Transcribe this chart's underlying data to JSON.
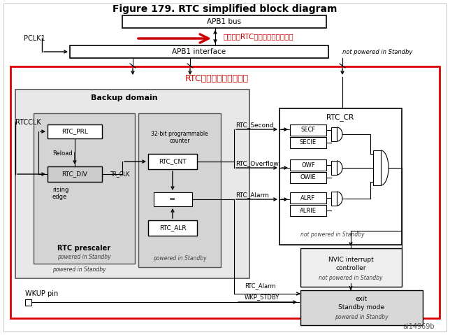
{
  "title": "Figure 179. RTC simplified block diagram",
  "bg_color": "#ffffff",
  "annotation_red": "每次要读RTC时，要等待总线同步",
  "annotation_red2": "RTC是独立与系统总线的",
  "fig_width": 6.44,
  "fig_height": 4.79,
  "dpi": 100
}
